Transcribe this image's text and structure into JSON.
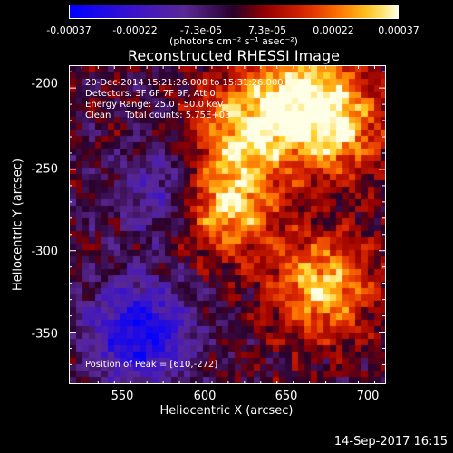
{
  "colorbar": {
    "tick_labels": [
      "-0.00037",
      "-0.00022",
      "-7.3e-05",
      "7.3e-05",
      "0.00022",
      "0.00037"
    ],
    "units": "(photons cm⁻² s⁻¹ asec⁻²)",
    "range": [
      -0.00037,
      0.00037
    ]
  },
  "title": "Reconstructed RHESSI Image",
  "info": {
    "time_range": "20-Dec-2014 15:21:26.000 to 15:31:26.000",
    "detectors": "Detectors: 3F 6F 7F 9F, Att 0",
    "energy": "Energy Range: 25.0 - 50.0 keV",
    "method": "Clean     Total counts: 5.75E+03"
  },
  "peak": "Position of Peak = [610,-272]",
  "timestamp": "14-Sep-2017 16:15",
  "chart_data": {
    "type": "heatmap",
    "title": "Reconstructed RHESSI Image",
    "xlabel": "Heliocentric X (arcsec)",
    "ylabel": "Heliocentric Y (arcsec)",
    "x_ticks": [
      550,
      600,
      650,
      700
    ],
    "y_ticks": [
      -200,
      -250,
      -300,
      -350
    ],
    "xlim": [
      517,
      712
    ],
    "ylim": [
      -382,
      -186
    ],
    "colorscale": "red-temperature (blue negative, black/purple near zero, red-orange-yellow-white positive)",
    "peak_position": [
      610,
      -272
    ],
    "bright_sources": [
      {
        "x": 610,
        "y": -272,
        "relative_intensity": 1.0
      },
      {
        "x": 625,
        "y": -225,
        "relative_intensity": 0.8
      },
      {
        "x": 680,
        "y": -225,
        "relative_intensity": 0.75
      },
      {
        "x": 672,
        "y": -322,
        "relative_intensity": 0.85
      },
      {
        "x": 660,
        "y": -200,
        "relative_intensity": 0.7
      }
    ],
    "negative_regions": [
      {
        "x": 560,
        "y": -350,
        "relative_intensity": -0.9
      },
      {
        "x": 580,
        "y": -265,
        "relative_intensity": -0.6
      }
    ]
  }
}
